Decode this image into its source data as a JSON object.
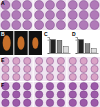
{
  "figure": {
    "panels": [
      {
        "label": "A",
        "kind": "histology",
        "color": "#b07ab8",
        "count": 3
      },
      {
        "label": "B",
        "kind": "photo",
        "color": "#c8702a",
        "count": 3
      },
      {
        "label": "E",
        "kind": "histology",
        "color": "#d9a3c6",
        "count": 3
      },
      {
        "label": "F",
        "kind": "histology",
        "color": "#9c5aa8",
        "count": 3
      }
    ]
  },
  "chart_data": [
    {
      "type": "bar",
      "title": "C",
      "categories": [
        null,
        null,
        null
      ],
      "values": [
        1.0,
        0.95,
        0.5
      ],
      "colors": [
        "#222222",
        "#888888",
        "#dddddd"
      ],
      "ylim": [
        0,
        1.2
      ],
      "yticks": [
        0,
        1
      ],
      "tick_labels": false
    },
    {
      "type": "bar",
      "title": "D",
      "categories": [
        null,
        null,
        null
      ],
      "values": [
        1.0,
        0.7,
        0.35
      ],
      "colors": [
        "#222222",
        "#888888",
        "#dddddd"
      ],
      "ylim": [
        0,
        1.2
      ],
      "yticks": [
        0,
        1
      ],
      "tick_labels": false
    }
  ]
}
